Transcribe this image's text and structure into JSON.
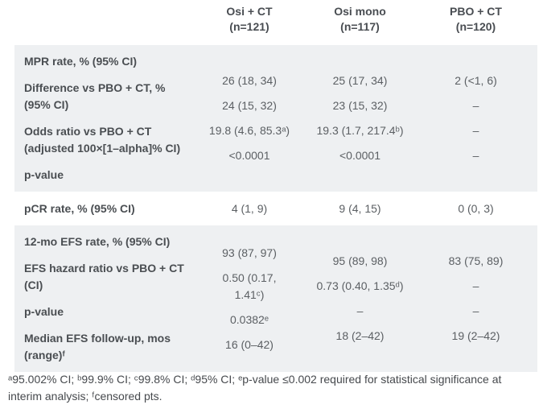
{
  "table": {
    "header": {
      "columns": [
        {
          "line1": "Osi + CT",
          "line2": "(n=121)"
        },
        {
          "line1": "Osi mono",
          "line2": "(n=117)"
        },
        {
          "line1": "PBO + CT",
          "line2": "(n=120)"
        }
      ]
    },
    "sections": [
      {
        "labels": [
          "MPR rate, % (95% CI)",
          "Difference vs PBO + CT, % (95% CI)",
          "Odds ratio vs PBO + CT (adjusted 100×[1–alpha]% CI)",
          "p-value"
        ],
        "col1": [
          "26 (18, 34)",
          "24 (15, 32)",
          "19.8 (4.6, 85.3ᵃ)",
          "<0.0001"
        ],
        "col2": [
          "25 (17, 34)",
          "23 (15, 32)",
          "19.3 (1.7, 217.4ᵇ)",
          "<0.0001"
        ],
        "col3": [
          "2 (<1, 6)",
          "–",
          "–",
          "–"
        ]
      },
      {
        "label": "pCR rate, % (95% CI)",
        "col1": "4 (1, 9)",
        "col2": "9 (4, 15)",
        "col3": "0 (0, 3)"
      },
      {
        "labels": [
          "12-mo EFS rate, % (95% CI)",
          "EFS hazard ratio vs PBO + CT (CI)",
          "p-value",
          "Median EFS follow-up, mos (range)ᶠ"
        ],
        "col1": [
          "93 (87, 97)",
          "0.50 (0.17,\n1.41ᶜ)",
          "0.0382ᵉ",
          "16 (0–42)"
        ],
        "col2": [
          "95 (89, 98)",
          "0.73 (0.40, 1.35ᵈ)",
          "–",
          "18 (2–42)"
        ],
        "col3": [
          "83 (75, 89)",
          "–",
          "–",
          "19 (2–42)"
        ]
      }
    ],
    "footnote": "ᵃ95.002% CI; ᵇ99.9% CI; ᶜ99.8% CI; ᵈ95% CI; ᵉp-value ≤0.002 required for statistical significance at interim analysis; ᶠcensored pts.",
    "colors": {
      "band_background": "#eef0f2",
      "label_text": "#4a4e52",
      "value_text": "#5b5f63"
    }
  }
}
